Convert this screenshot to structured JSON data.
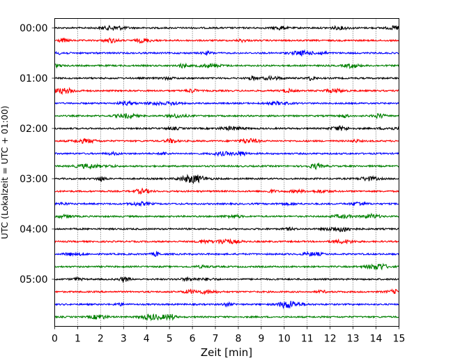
{
  "chart_data": {
    "type": "line",
    "title": "",
    "xlabel": "Zeit  [min]",
    "ylabel": "UTC (Lokalzeit = UTC + 01:00)",
    "xlim": [
      0,
      15
    ],
    "x_ticks": [
      "0",
      "1",
      "2",
      "3",
      "4",
      "5",
      "6",
      "7",
      "8",
      "9",
      "10",
      "11",
      "12",
      "13",
      "14",
      "15"
    ],
    "y_ticks": [
      "00:00",
      "01:00",
      "02:00",
      "03:00",
      "04:00",
      "05:00"
    ],
    "trace_interval_min": 15,
    "grid": "vertical dotted",
    "legend": "none",
    "colors": [
      "#000000",
      "#ff0000",
      "#0000ff",
      "#008000"
    ],
    "traces": [
      {
        "start": "00:00",
        "color": "#000000"
      },
      {
        "start": "00:15",
        "color": "#ff0000"
      },
      {
        "start": "00:30",
        "color": "#0000ff"
      },
      {
        "start": "00:45",
        "color": "#008000"
      },
      {
        "start": "01:00",
        "color": "#000000"
      },
      {
        "start": "01:15",
        "color": "#ff0000"
      },
      {
        "start": "01:30",
        "color": "#0000ff"
      },
      {
        "start": "01:45",
        "color": "#008000"
      },
      {
        "start": "02:00",
        "color": "#000000"
      },
      {
        "start": "02:15",
        "color": "#ff0000"
      },
      {
        "start": "02:30",
        "color": "#0000ff"
      },
      {
        "start": "02:45",
        "color": "#008000"
      },
      {
        "start": "03:00",
        "color": "#000000"
      },
      {
        "start": "03:15",
        "color": "#ff0000"
      },
      {
        "start": "03:30",
        "color": "#0000ff"
      },
      {
        "start": "03:45",
        "color": "#008000"
      },
      {
        "start": "04:00",
        "color": "#000000"
      },
      {
        "start": "04:15",
        "color": "#ff0000"
      },
      {
        "start": "04:30",
        "color": "#0000ff"
      },
      {
        "start": "04:45",
        "color": "#008000"
      },
      {
        "start": "05:00",
        "color": "#000000"
      },
      {
        "start": "05:15",
        "color": "#ff0000"
      },
      {
        "start": "05:30",
        "color": "#0000ff"
      },
      {
        "start": "05:45",
        "color": "#008000"
      }
    ]
  }
}
